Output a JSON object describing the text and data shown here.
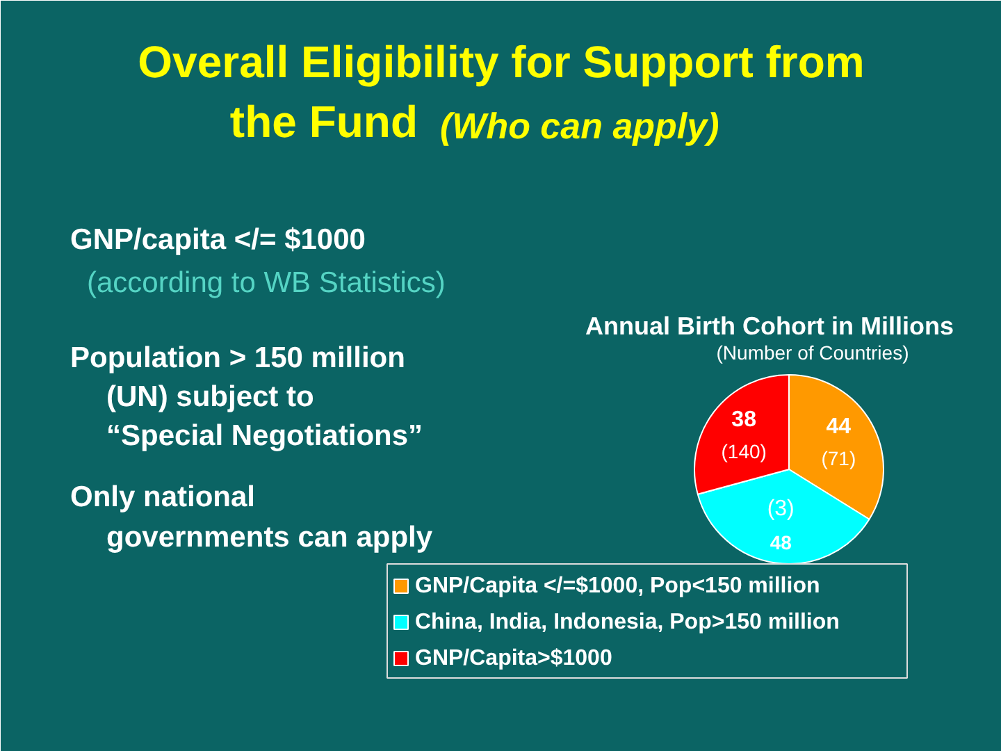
{
  "chart_data": {
    "type": "pie",
    "title": "Annual Birth Cohort in Millions",
    "subtitle": "(Number of Countries)",
    "categories": [
      "GNP/Capita </=$1000, Pop<150 million",
      "China, India, Indonesia, Pop>150 million",
      "GNP/Capita>$1000"
    ],
    "values": [
      44,
      48,
      38
    ],
    "colors": [
      "#ff9900",
      "#00ffff",
      "#ff0000"
    ],
    "value_labels": [
      "44\n(71)",
      "(3)\n48",
      "38\n(140)"
    ],
    "legend": "bottom",
    "annotations": [
      "Overall Eligibility for Support from",
      "the Fund",
      "(Who can apply)",
      "GNP/capita </= $1000",
      "(according to WB Statistics)",
      "Population > 150 million",
      "(UN) subject to",
      "“Special Negotiations”",
      "Only national",
      "governments can apply"
    ]
  }
}
